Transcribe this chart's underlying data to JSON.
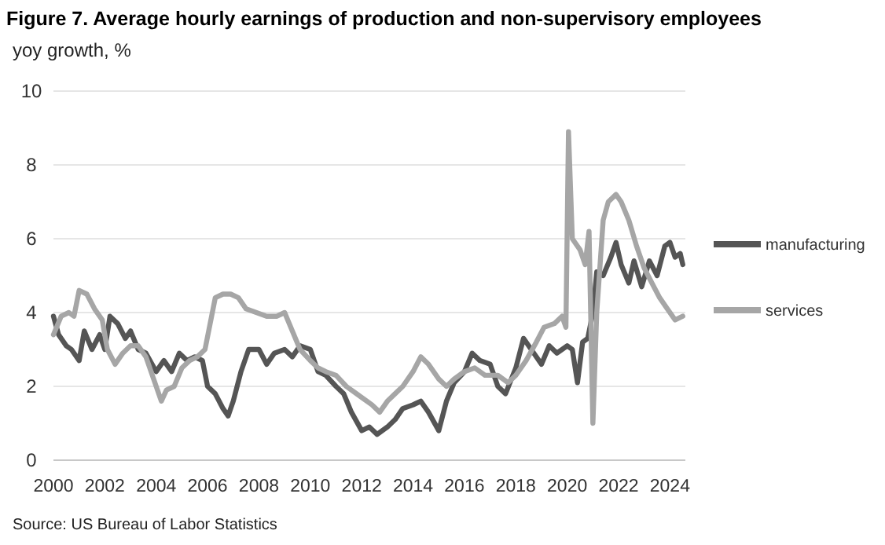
{
  "chart_data": {
    "type": "line",
    "title": "Figure 7. Average hourly earnings of production and non-supervisory employees",
    "ylabel": "yoy growth, %",
    "annotations": [
      "Source: US Bureau of Labor Statistics"
    ],
    "xlim": [
      2000,
      2024.6
    ],
    "xticks": [
      2000,
      2002,
      2004,
      2006,
      2008,
      2010,
      2012,
      2014,
      2016,
      2018,
      2020,
      2022,
      2024
    ],
    "ylim": [
      0,
      10
    ],
    "yticks": [
      0,
      2,
      4,
      6,
      8,
      10
    ],
    "grid": "y",
    "legend": "right",
    "line_style": "solid",
    "marker": "none",
    "series": [
      {
        "name": "manufacturing",
        "color": "#555555",
        "x": [
          2000,
          2000.2,
          2000.5,
          2000.7,
          2001,
          2001.2,
          2001.5,
          2001.8,
          2002,
          2002.2,
          2002.5,
          2002.8,
          2003,
          2003.3,
          2003.6,
          2004,
          2004.3,
          2004.6,
          2004.9,
          2005.2,
          2005.5,
          2005.8,
          2006,
          2006.3,
          2006.6,
          2006.8,
          2007,
          2007.3,
          2007.6,
          2008,
          2008.3,
          2008.6,
          2009,
          2009.3,
          2009.6,
          2010,
          2010.3,
          2010.6,
          2011,
          2011.3,
          2011.6,
          2012,
          2012.3,
          2012.6,
          2013,
          2013.3,
          2013.6,
          2014,
          2014.3,
          2014.6,
          2015,
          2015.3,
          2015.6,
          2016,
          2016.3,
          2016.6,
          2017,
          2017.3,
          2017.6,
          2018,
          2018.3,
          2018.6,
          2019,
          2019.3,
          2019.6,
          2020,
          2020.2,
          2020.4,
          2020.6,
          2020.8,
          2021,
          2021.15,
          2021.4,
          2021.7,
          2021.9,
          2022.1,
          2022.4,
          2022.6,
          2022.9,
          2023.2,
          2023.5,
          2023.8,
          2024,
          2024.2,
          2024.4,
          2024.5
        ],
        "values": [
          3.9,
          3.4,
          3.1,
          3.0,
          2.7,
          3.5,
          3.0,
          3.4,
          3.0,
          3.9,
          3.7,
          3.3,
          3.5,
          3.0,
          2.9,
          2.4,
          2.7,
          2.4,
          2.9,
          2.7,
          2.8,
          2.7,
          2.0,
          1.8,
          1.4,
          1.2,
          1.6,
          2.4,
          3.0,
          3.0,
          2.6,
          2.9,
          3.0,
          2.8,
          3.1,
          3.0,
          2.4,
          2.3,
          2.0,
          1.8,
          1.3,
          0.8,
          0.9,
          0.7,
          0.9,
          1.1,
          1.4,
          1.5,
          1.6,
          1.3,
          0.8,
          1.6,
          2.1,
          2.4,
          2.9,
          2.7,
          2.6,
          2.0,
          1.8,
          2.5,
          3.3,
          3.0,
          2.6,
          3.1,
          2.9,
          3.1,
          3.0,
          2.1,
          3.2,
          3.3,
          4.0,
          5.1,
          5.0,
          5.5,
          5.9,
          5.3,
          4.8,
          5.4,
          4.7,
          5.4,
          5.0,
          5.8,
          5.9,
          5.5,
          5.6,
          5.3
        ]
      },
      {
        "name": "services",
        "color": "#a6a6a6",
        "x": [
          2000,
          2000.3,
          2000.6,
          2000.8,
          2001,
          2001.3,
          2001.6,
          2001.9,
          2002.1,
          2002.4,
          2002.7,
          2003,
          2003.3,
          2003.6,
          2004,
          2004.2,
          2004.4,
          2004.7,
          2005,
          2005.3,
          2005.6,
          2005.9,
          2006.1,
          2006.3,
          2006.6,
          2006.9,
          2007.2,
          2007.5,
          2007.9,
          2008.3,
          2008.7,
          2009,
          2009.3,
          2009.6,
          2010,
          2010.3,
          2010.6,
          2011,
          2011.4,
          2011.8,
          2012,
          2012.4,
          2012.7,
          2013,
          2013.3,
          2013.6,
          2014,
          2014.3,
          2014.6,
          2015,
          2015.3,
          2015.6,
          2016,
          2016.4,
          2016.8,
          2017.3,
          2017.7,
          2018,
          2018.4,
          2018.8,
          2019.1,
          2019.5,
          2019.8,
          2019.95,
          2020.05,
          2020.2,
          2020.5,
          2020.7,
          2020.85,
          2021,
          2021.15,
          2021.4,
          2021.6,
          2021.9,
          2022.1,
          2022.4,
          2022.7,
          2023,
          2023.3,
          2023.6,
          2023.9,
          2024.2,
          2024.5
        ],
        "values": [
          3.4,
          3.9,
          4.0,
          3.9,
          4.6,
          4.5,
          4.1,
          3.8,
          3.0,
          2.6,
          2.9,
          3.1,
          3.1,
          2.8,
          2.0,
          1.6,
          1.9,
          2.0,
          2.5,
          2.7,
          2.8,
          3.0,
          3.7,
          4.4,
          4.5,
          4.5,
          4.4,
          4.1,
          4.0,
          3.9,
          3.9,
          4.0,
          3.5,
          3.0,
          2.7,
          2.5,
          2.4,
          2.3,
          2.0,
          1.8,
          1.7,
          1.5,
          1.3,
          1.6,
          1.8,
          2.0,
          2.4,
          2.8,
          2.6,
          2.2,
          2.0,
          2.2,
          2.4,
          2.5,
          2.3,
          2.3,
          2.1,
          2.3,
          2.7,
          3.2,
          3.6,
          3.7,
          3.9,
          3.6,
          8.9,
          6.0,
          5.7,
          5.3,
          6.2,
          1.0,
          4.0,
          6.5,
          7.0,
          7.2,
          7.0,
          6.5,
          5.8,
          5.2,
          4.8,
          4.4,
          4.1,
          3.8,
          3.9
        ]
      }
    ]
  }
}
